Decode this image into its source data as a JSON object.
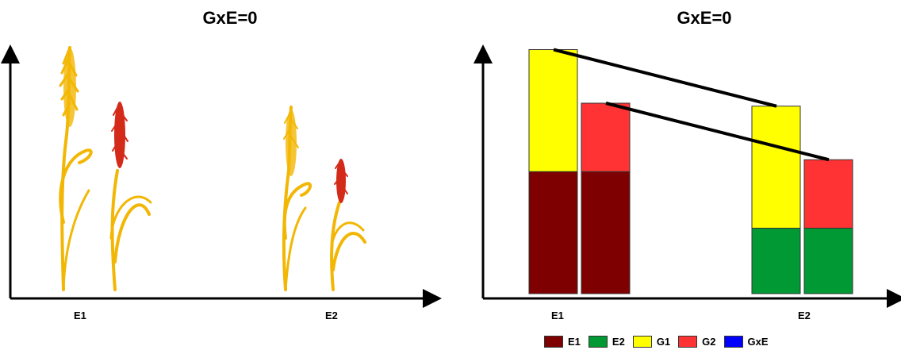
{
  "left_panel": {
    "title": "GxE=0",
    "x_labels": [
      "E1",
      "E2"
    ]
  },
  "right_panel": {
    "title": "GxE=0",
    "x_labels": [
      "E1",
      "E2"
    ]
  },
  "legend": [
    {
      "label": "E1",
      "color": "#7f0000"
    },
    {
      "label": "E2",
      "color": "#009933"
    },
    {
      "label": "G1",
      "color": "#ffff00"
    },
    {
      "label": "G2",
      "color": "#ff3333"
    },
    {
      "label": "GxE",
      "color": "#0000ff"
    }
  ],
  "chart_data": {
    "type": "bar",
    "stacked": true,
    "categories": [
      "E1",
      "E2"
    ],
    "groups": [
      "G1",
      "G2"
    ],
    "E1": {
      "G1": {
        "environment": 41,
        "genotype": 41
      },
      "G2": {
        "environment": 41,
        "genotype": 23
      }
    },
    "E2": {
      "G1": {
        "environment": 22,
        "genotype": 41
      },
      "G2": {
        "environment": 22,
        "genotype": 23
      }
    },
    "environment_colors": {
      "E1": "#7f0000",
      "E2": "#009933"
    },
    "genotype_colors": {
      "G1": "#ffff00",
      "G2": "#ff3333"
    },
    "reaction_norms": true
  }
}
